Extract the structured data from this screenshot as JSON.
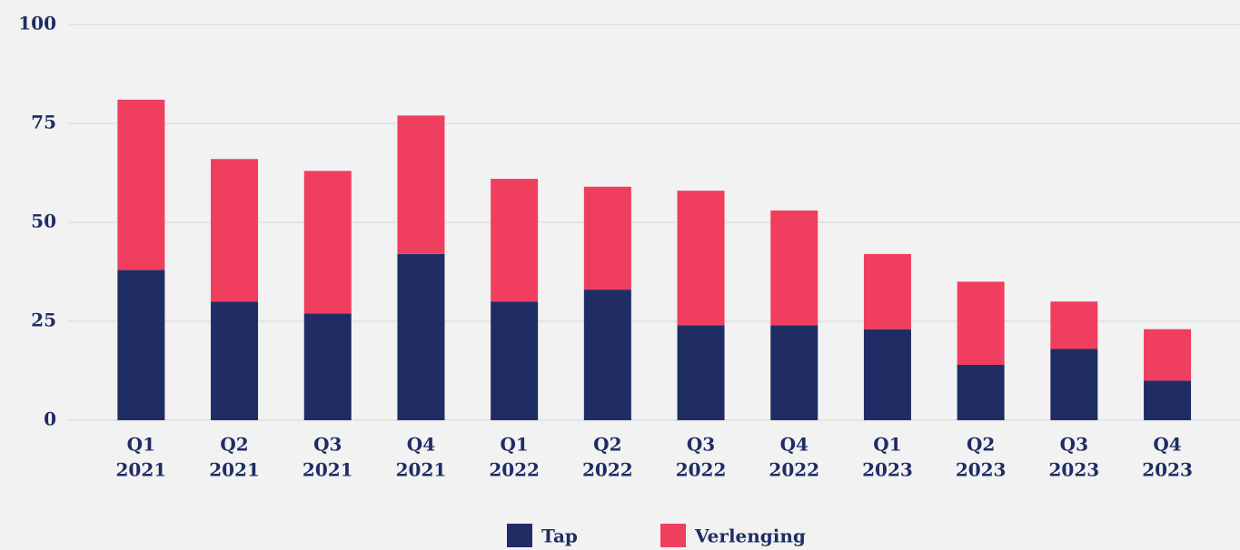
{
  "chart_data": {
    "type": "stacked_bar",
    "categories": [
      [
        "Q1",
        "2021"
      ],
      [
        "Q2",
        "2021"
      ],
      [
        "Q3",
        "2021"
      ],
      [
        "Q4",
        "2021"
      ],
      [
        "Q1",
        "2022"
      ],
      [
        "Q2",
        "2022"
      ],
      [
        "Q3",
        "2022"
      ],
      [
        "Q4",
        "2022"
      ],
      [
        "Q1",
        "2023"
      ],
      [
        "Q2",
        "2023"
      ],
      [
        "Q3",
        "2023"
      ],
      [
        "Q4",
        "2023"
      ]
    ],
    "series": [
      {
        "name": "Tap",
        "color": "#1f2d64",
        "values": [
          38,
          30,
          27,
          42,
          30,
          33,
          24,
          24,
          23,
          14,
          18,
          10
        ]
      },
      {
        "name": "Verlenging",
        "color": "#f03e5f",
        "values": [
          43,
          36,
          36,
          35,
          31,
          26,
          34,
          29,
          19,
          21,
          12,
          13
        ]
      }
    ],
    "ylim": [
      0,
      100
    ],
    "yticks": [
      0,
      25,
      50,
      75,
      100
    ],
    "grid": true,
    "legend": "bottom"
  }
}
